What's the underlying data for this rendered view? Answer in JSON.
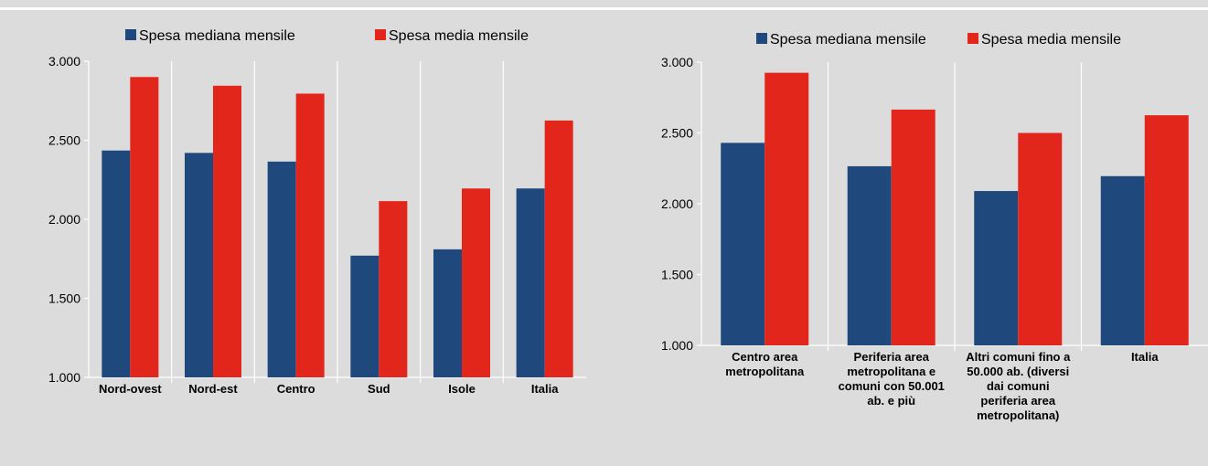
{
  "colors": {
    "median": "#1f497d",
    "mean": "#e3261c"
  },
  "chart_data": [
    {
      "type": "bar",
      "legend": [
        "Spesa mediana mensile",
        "Spesa media mensile"
      ],
      "legend_position": "top",
      "categories": [
        [
          "Nord-ovest"
        ],
        [
          "Nord-est"
        ],
        [
          "Centro"
        ],
        [
          "Sud"
        ],
        [
          "Isole"
        ],
        [
          "Italia"
        ]
      ],
      "series": [
        {
          "name": "Spesa mediana mensile",
          "color": "#1f497d",
          "values": [
            2435,
            2420,
            2365,
            1770,
            1810,
            2195
          ]
        },
        {
          "name": "Spesa media mensile",
          "color": "#e3261c",
          "values": [
            2900,
            2845,
            2795,
            2115,
            2195,
            2625
          ]
        }
      ],
      "ylim": [
        1000,
        3000
      ],
      "yticks": [
        1000,
        1500,
        2000,
        2500,
        3000
      ],
      "ytick_labels": [
        "1.000",
        "1.500",
        "2.000",
        "2.500",
        "3.000"
      ],
      "grid": "vertical separators"
    },
    {
      "type": "bar",
      "legend": [
        "Spesa mediana mensile",
        "Spesa media mensile"
      ],
      "legend_position": "top",
      "categories": [
        [
          "Centro area",
          "metropolitana"
        ],
        [
          "Periferia area",
          "metropolitana e",
          "comuni con 50.001",
          "ab. e più"
        ],
        [
          "Altri comuni fino a",
          "50.000 ab. (diversi",
          "dai comuni",
          "periferia area",
          "metropolitana)"
        ],
        [
          "Italia"
        ]
      ],
      "series": [
        {
          "name": "Spesa mediana mensile",
          "color": "#1f497d",
          "values": [
            2430,
            2265,
            2090,
            2195
          ]
        },
        {
          "name": "Spesa media mensile",
          "color": "#e3261c",
          "values": [
            2925,
            2665,
            2500,
            2625
          ]
        }
      ],
      "ylim": [
        1000,
        3000
      ],
      "yticks": [
        1000,
        1500,
        2000,
        2500,
        3000
      ],
      "ytick_labels": [
        "1.000",
        "1.500",
        "2.000",
        "2.500",
        "3.000"
      ],
      "grid": "vertical separators"
    }
  ]
}
